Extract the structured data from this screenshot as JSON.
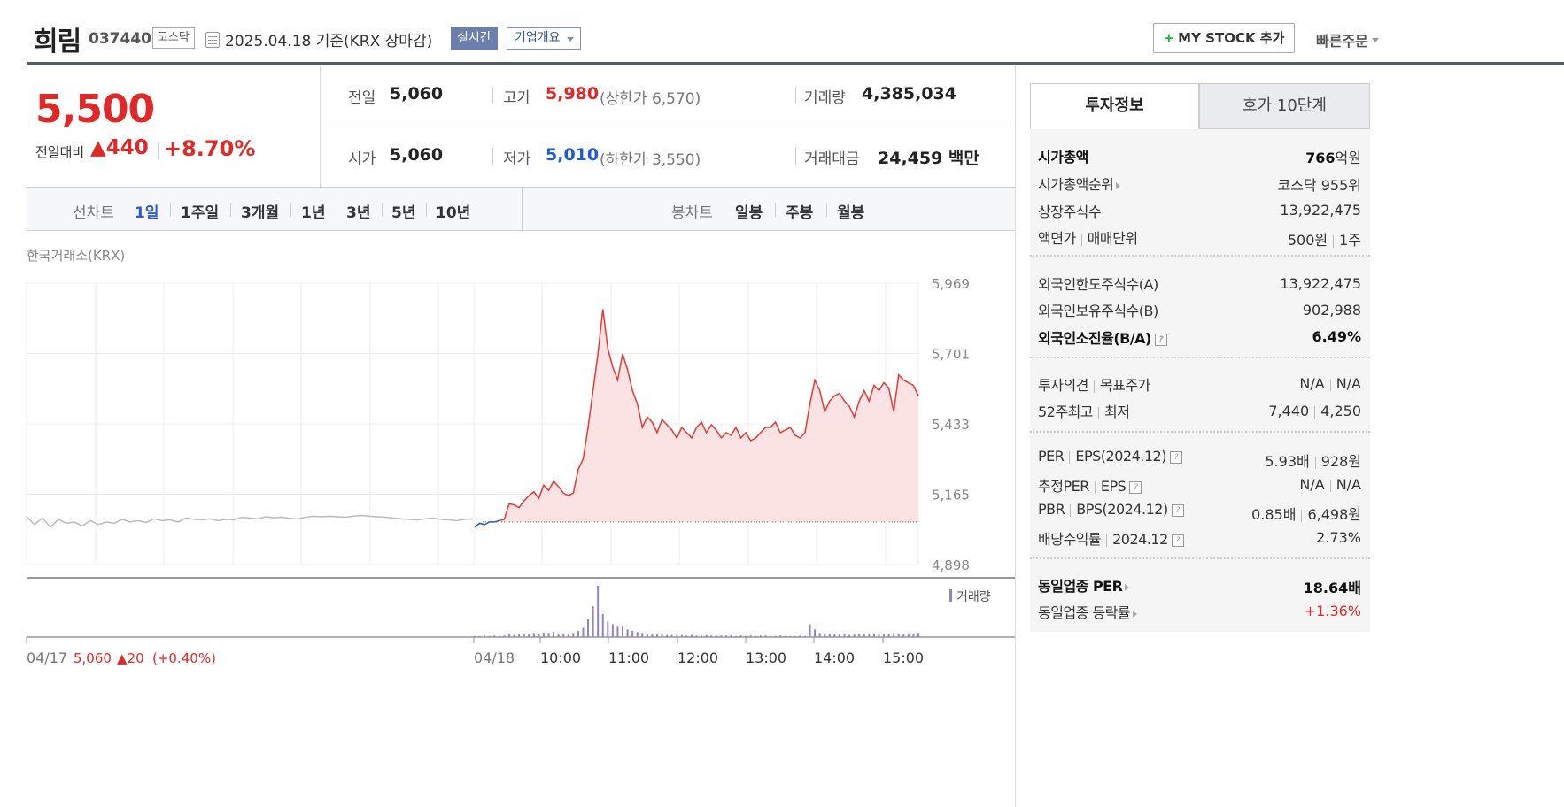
{
  "header": {
    "name": "희림",
    "code": "037440",
    "market": "코스닥",
    "date": "2025.04.18  기준(KRX 장마감)",
    "realtime_label": "실시간",
    "overview_label": "기업개요",
    "mystock_plus": "+",
    "mystock_label": "MY STOCK 추가",
    "quick_order_label": "빠른주문"
  },
  "quote": {
    "price": "5,500",
    "change_label": "전일대비",
    "change_abs": "▲440",
    "change_pct": "+8.70%",
    "prev_label": "전일",
    "prev": "5,060",
    "open_label": "시가",
    "open": "5,060",
    "high_label": "고가",
    "high": "5,980",
    "upper_limit": "(상한가 6,570)",
    "low_label": "저가",
    "low": "5,010",
    "lower_limit": "(하한가 3,550)",
    "volume_label": "거래량",
    "volume": "4,385,034",
    "value_label": "거래대금",
    "value": "24,459 백만"
  },
  "periods": {
    "line_label": "선차트",
    "line_items": [
      "1일",
      "1주일",
      "3개월",
      "1년",
      "3년",
      "5년",
      "10년"
    ],
    "candle_label": "봉차트",
    "candle_items": [
      "일봉",
      "주봉",
      "월봉"
    ]
  },
  "source": "한국거래소(KRX)",
  "tabs": {
    "invest": "투자정보",
    "orderbook": "호가 10단계"
  },
  "invest": {
    "mcap_label": "시가총액",
    "mcap": "766",
    "mcap_unit": "억원",
    "mcap_rank_label": "시가총액순위",
    "mcap_rank": "코스닥 955위",
    "shares_label": "상장주식수",
    "shares": "13,922,475",
    "face_label": "액면가",
    "lot_label": "매매단위",
    "face": "500원",
    "lot": "1주",
    "foreign_limit_label": "외국인한도주식수(A)",
    "foreign_limit": "13,922,475",
    "foreign_hold_label": "외국인보유주식수(B)",
    "foreign_hold": "902,988",
    "foreign_ratio_label": "외국인소진율(B/A)",
    "foreign_ratio": "6.49%",
    "opinion_label": "투자의견",
    "target_label": "목표주가",
    "opinion": "N/A",
    "target": "N/A",
    "w52_high_label": "52주최고",
    "w52_low_label": "최저",
    "w52_high": "7,440",
    "w52_low": "4,250",
    "per_label": "PER",
    "eps_label": "EPS(2024.12)",
    "per": "5.93배",
    "eps": "928원",
    "eper_label": "추정PER",
    "eeps_label": "EPS",
    "eper": "N/A",
    "eeps": "N/A",
    "pbr_label": "PBR",
    "bps_label": "BPS(2024.12)",
    "pbr": "0.85배",
    "bps": "6,498원",
    "div_label": "배당수익률",
    "div_date": "2024.12",
    "div": "2.73%",
    "ind_per_label": "동일업종 PER",
    "ind_per": "18.64배",
    "ind_chg_label": "동일업종 등락률",
    "ind_chg": "+1.36%",
    "help": "?"
  },
  "chart_data": {
    "type": "area",
    "y_ticks": [
      "5,969",
      "5,701",
      "5,433",
      "5,165",
      "4,898"
    ],
    "ylim": [
      4898,
      5969
    ],
    "x_ticks": [
      "04/17",
      "04/18",
      "10:00",
      "11:00",
      "12:00",
      "13:00",
      "14:00",
      "15:00"
    ],
    "prev_day_summary": {
      "close": "5,060",
      "change": "▲20",
      "pct": "(+0.40%)"
    },
    "volume_label": "거래량",
    "baseline": 5060,
    "prev_day_series": [
      5080,
      5050,
      5075,
      5040,
      5070,
      5055,
      5060,
      5045,
      5065,
      5050,
      5060,
      5055,
      5070,
      5060,
      5065,
      5058,
      5072,
      5065,
      5068,
      5060,
      5075,
      5070,
      5068,
      5072,
      5065,
      5070,
      5068,
      5078,
      5075,
      5072,
      5080,
      5076,
      5078,
      5074,
      5072,
      5078,
      5082,
      5080,
      5082,
      5080,
      5078,
      5082,
      5085,
      5082,
      5080,
      5078,
      5075,
      5072,
      5070,
      5068,
      5072,
      5075,
      5070,
      5068,
      5065,
      5070,
      5072
    ],
    "today_series": [
      5040,
      5055,
      5050,
      5060,
      5060,
      5065,
      5070,
      5130,
      5125,
      5115,
      5140,
      5160,
      5175,
      5150,
      5200,
      5180,
      5215,
      5195,
      5170,
      5160,
      5170,
      5260,
      5300,
      5420,
      5560,
      5700,
      5870,
      5720,
      5650,
      5600,
      5700,
      5640,
      5560,
      5510,
      5420,
      5460,
      5440,
      5400,
      5450,
      5430,
      5410,
      5380,
      5420,
      5400,
      5380,
      5420,
      5440,
      5400,
      5430,
      5410,
      5380,
      5400,
      5390,
      5420,
      5380,
      5400,
      5370,
      5380,
      5400,
      5420,
      5420,
      5440,
      5400,
      5410,
      5420,
      5390,
      5380,
      5400,
      5510,
      5600,
      5560,
      5480,
      5520,
      5540,
      5550,
      5520,
      5500,
      5460,
      5520,
      5560,
      5520,
      5580,
      5560,
      5590,
      5570,
      5480,
      5620,
      5600,
      5590,
      5580,
      5540
    ],
    "volume_series": [
      0.02,
      0.02,
      0.03,
      0.02,
      0.03,
      0.02,
      0.03,
      0.05,
      0.04,
      0.06,
      0.05,
      0.07,
      0.08,
      0.06,
      0.09,
      0.08,
      0.1,
      0.07,
      0.06,
      0.05,
      0.08,
      0.12,
      0.18,
      0.35,
      0.6,
      1.0,
      0.45,
      0.3,
      0.25,
      0.2,
      0.22,
      0.15,
      0.12,
      0.1,
      0.08,
      0.07,
      0.06,
      0.05,
      0.05,
      0.04,
      0.04,
      0.04,
      0.04,
      0.03,
      0.04,
      0.03,
      0.03,
      0.04,
      0.03,
      0.03,
      0.03,
      0.03,
      0.03,
      0.02,
      0.03,
      0.02,
      0.03,
      0.02,
      0.03,
      0.03,
      0.02,
      0.02,
      0.03,
      0.02,
      0.02,
      0.02,
      0.03,
      0.02,
      0.25,
      0.15,
      0.08,
      0.06,
      0.05,
      0.06,
      0.07,
      0.05,
      0.04,
      0.05,
      0.06,
      0.05,
      0.05,
      0.06,
      0.05,
      0.07,
      0.06,
      0.08,
      0.06,
      0.05,
      0.07,
      0.06,
      0.08
    ]
  },
  "colors": {
    "up": "#e12828",
    "down": "#1f5bd3",
    "line": "#e53935",
    "fill": "#fbe3e3",
    "prev_line": "#bbbbbb",
    "volume": "#9483c2"
  }
}
